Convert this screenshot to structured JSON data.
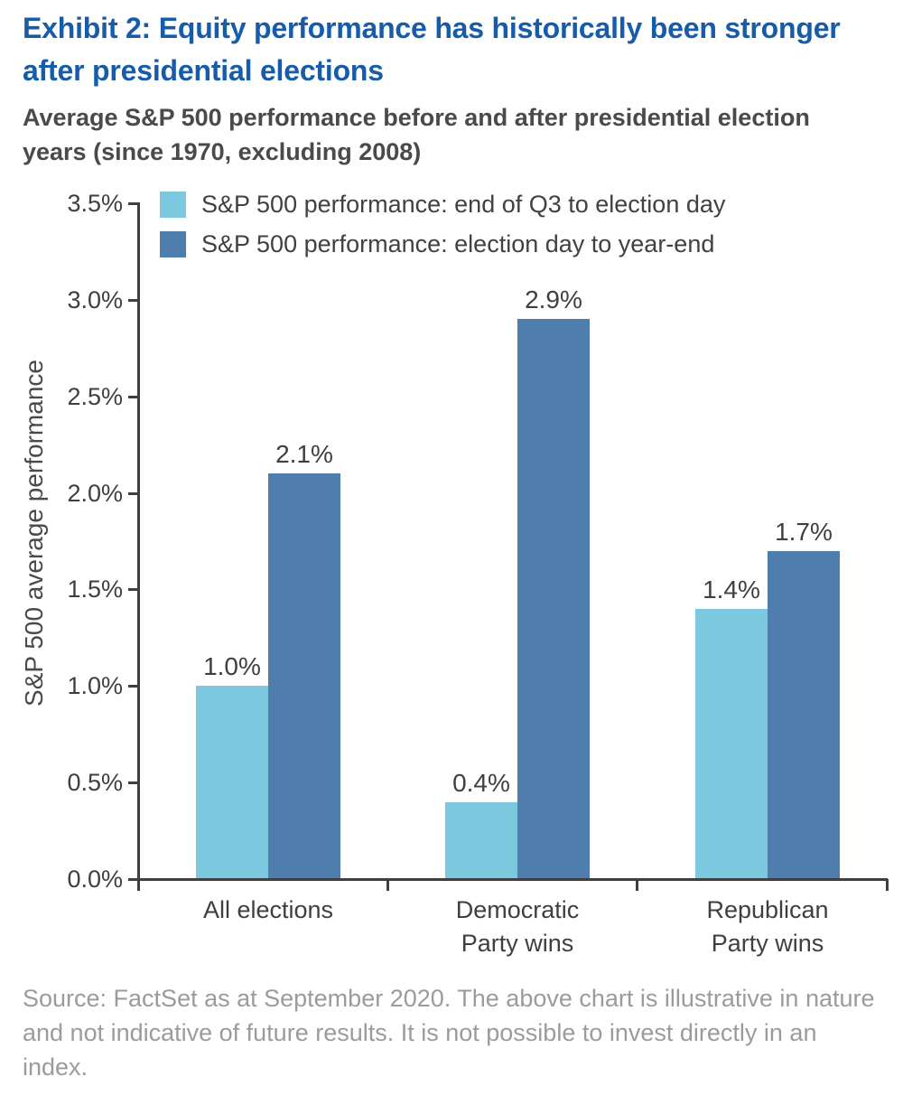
{
  "page": {
    "title": "Exhibit 2: Equity performance has historically been stronger after presidential elections",
    "subtitle": "Average S&P 500 performance before and after presidential election years (since 1970, excluding 2008)",
    "source": "Source: FactSet as at September 2020. The above chart is illustrative in nature and not indicative of future results. It is not possible to invest directly in an index."
  },
  "colors": {
    "title_blue": "#175CA8",
    "subtitle_gray": "#4A4A4A",
    "axis_gray": "#3F3F3F",
    "tick_text": "#3F3F3F",
    "legend_text": "#414141",
    "source_gray": "#9B9B9B",
    "series_light_blue": "#7CC8DE",
    "series_dark_blue": "#4E7DAE"
  },
  "chart_data": {
    "type": "bar",
    "title": "Average S&P 500 performance before and after presidential election years (since 1970, excluding 2008)",
    "xlabel": "",
    "ylabel": "S&P 500 average performance",
    "ylim": [
      0,
      3.5
    ],
    "ytick_step": 0.5,
    "ytick_labels": [
      "0.0%",
      "0.5%",
      "1.0%",
      "1.5%",
      "2.0%",
      "2.5%",
      "3.0%",
      "3.5%"
    ],
    "grid": false,
    "legend_position": "top-left-inside",
    "categories": [
      "All elections",
      "Democratic\nParty wins",
      "Republican\nParty wins"
    ],
    "series": [
      {
        "name": "S&P 500 performance: end of Q3 to election day",
        "color": "#7CC8DE",
        "values": [
          1.0,
          0.4,
          1.4
        ],
        "labels": [
          "1.0%",
          "0.4%",
          "1.4%"
        ]
      },
      {
        "name": "S&P 500 performance: election day to year-end",
        "color": "#4E7DAE",
        "values": [
          2.1,
          2.9,
          1.7
        ],
        "labels": [
          "2.1%",
          "2.9%",
          "1.7%"
        ]
      }
    ]
  }
}
